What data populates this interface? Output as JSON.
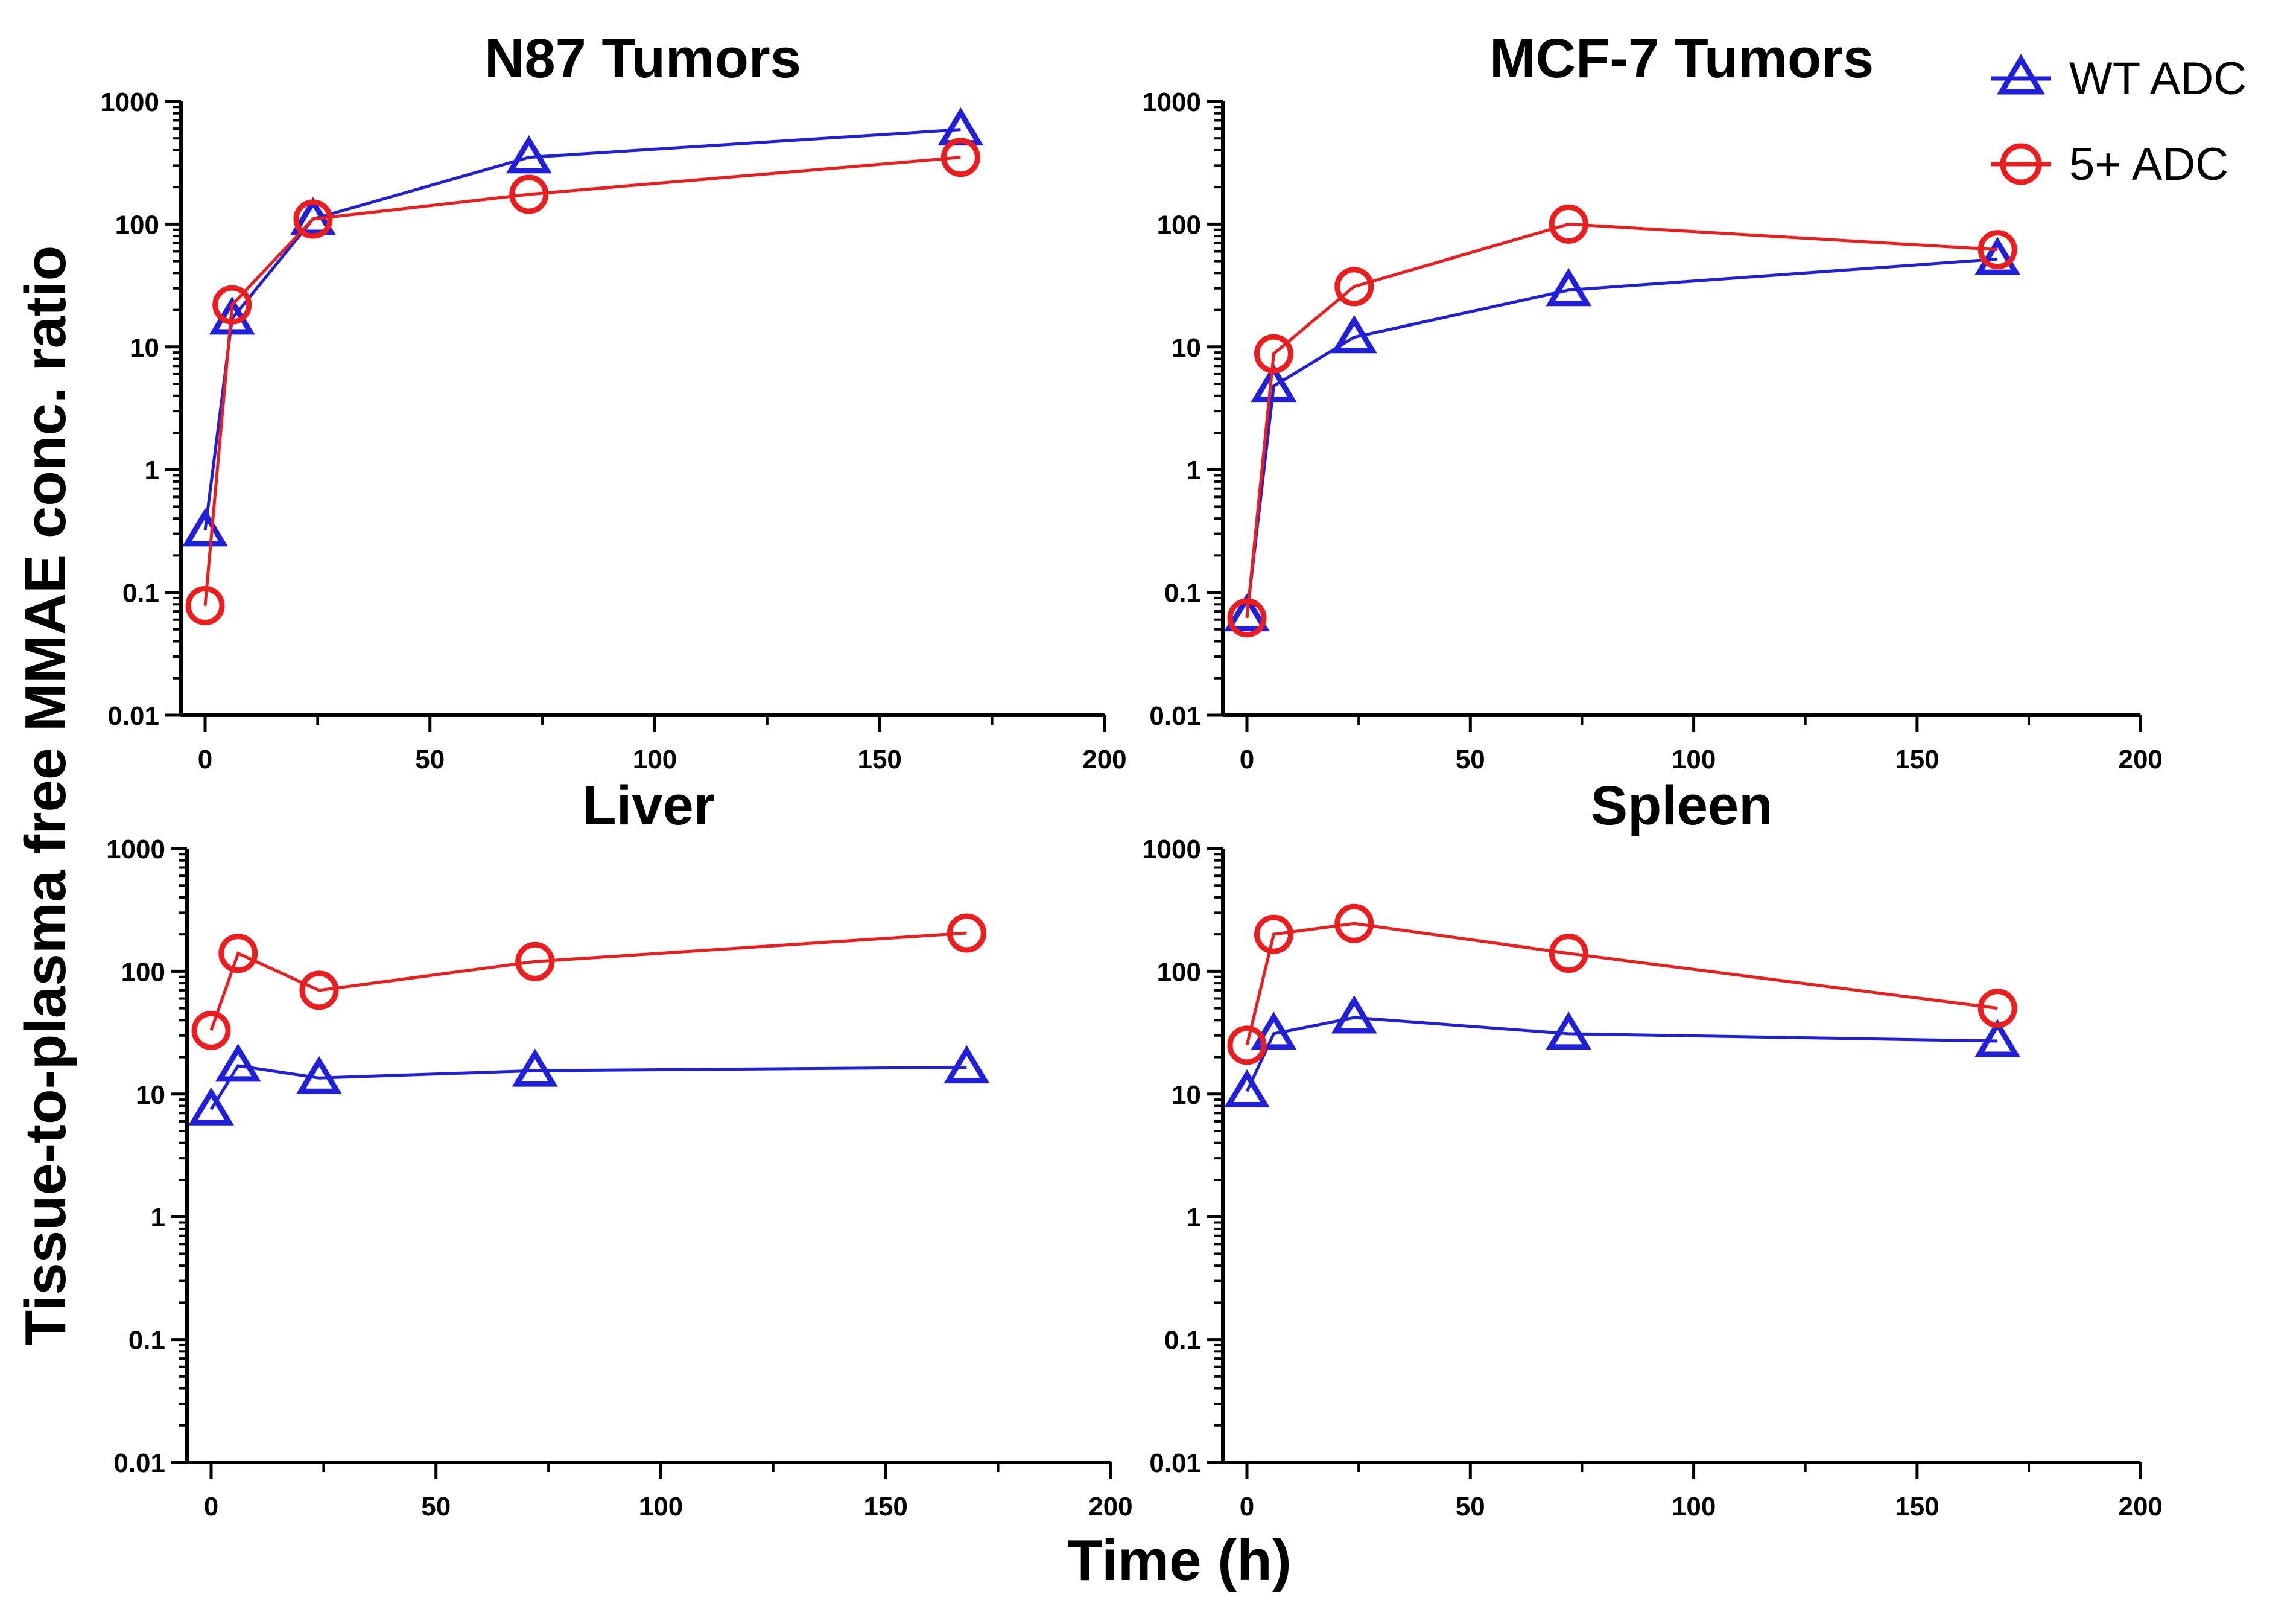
{
  "figure": {
    "ylabel": "Tissue-to-plasma free MMAE conc. ratio",
    "xlabel": "Time (h)"
  },
  "legend": {
    "position": "top-right",
    "items": [
      {
        "label": "WT ADC",
        "color": "#1f1fdc",
        "marker": "triangle-icon"
      },
      {
        "label": "5+ ADC",
        "color": "#ee1c1c",
        "marker": "circle-icon"
      }
    ]
  },
  "chart_data": [
    {
      "type": "line",
      "title": "N87 Tumors",
      "xlim": [
        0,
        200
      ],
      "xticks": [
        "0",
        "50",
        "100",
        "150",
        "200"
      ],
      "ylim": [
        0.01,
        1000
      ],
      "yscale": "log",
      "yticks": [
        "0.01",
        "0.1",
        "1",
        "10",
        "100",
        "1000"
      ],
      "x": [
        0,
        6,
        24,
        72,
        168
      ],
      "series": [
        {
          "name": "WT ADC",
          "color": "#1f1fdc",
          "marker": "triangle",
          "values": [
            0.32,
            17,
            110,
            350,
            590
          ]
        },
        {
          "name": "5+ ADC",
          "color": "#ee1c1c",
          "marker": "circle",
          "values": [
            0.078,
            22,
            110,
            175,
            350
          ]
        }
      ]
    },
    {
      "type": "line",
      "title": "MCF-7 Tumors",
      "xlim": [
        0,
        200
      ],
      "xticks": [
        "0",
        "50",
        "100",
        "150",
        "200"
      ],
      "ylim": [
        0.01,
        1000
      ],
      "yscale": "log",
      "yticks": [
        "0.01",
        "0.1",
        "1",
        "10",
        "100",
        "1000"
      ],
      "x": [
        0,
        6,
        24,
        72,
        168
      ],
      "series": [
        {
          "name": "WT ADC",
          "color": "#1f1fdc",
          "marker": "triangle",
          "values": [
            0.065,
            4.8,
            12,
            29,
            52
          ]
        },
        {
          "name": "5+ ADC",
          "color": "#ee1c1c",
          "marker": "circle",
          "values": [
            0.062,
            8.8,
            31,
            100,
            62
          ]
        }
      ]
    },
    {
      "type": "line",
      "title": "Liver",
      "xlim": [
        0,
        200
      ],
      "xticks": [
        "0",
        "50",
        "100",
        "150",
        "200"
      ],
      "ylim": [
        0.01,
        1000
      ],
      "yscale": "log",
      "yticks": [
        "0.01",
        "0.1",
        "1",
        "10",
        "100",
        "1000"
      ],
      "x": [
        0,
        6,
        24,
        72,
        168
      ],
      "series": [
        {
          "name": "WT ADC",
          "color": "#1f1fdc",
          "marker": "triangle",
          "values": [
            7.5,
            17,
            13.5,
            15.5,
            16.5
          ]
        },
        {
          "name": "5+ ADC",
          "color": "#ee1c1c",
          "marker": "circle",
          "values": [
            33,
            140,
            70,
            120,
            205
          ]
        }
      ]
    },
    {
      "type": "line",
      "title": "Spleen",
      "xlim": [
        0,
        200
      ],
      "xticks": [
        "0",
        "50",
        "100",
        "150",
        "200"
      ],
      "ylim": [
        0.01,
        1000
      ],
      "yscale": "log",
      "yticks": [
        "0.01",
        "0.1",
        "1",
        "10",
        "100",
        "1000"
      ],
      "x": [
        0,
        6,
        24,
        72,
        168
      ],
      "series": [
        {
          "name": "WT ADC",
          "color": "#1f1fdc",
          "marker": "triangle",
          "values": [
            10.5,
            31,
            42,
            31,
            27
          ]
        },
        {
          "name": "5+ ADC",
          "color": "#ee1c1c",
          "marker": "circle",
          "values": [
            25,
            200,
            245,
            140,
            50
          ]
        }
      ]
    }
  ]
}
